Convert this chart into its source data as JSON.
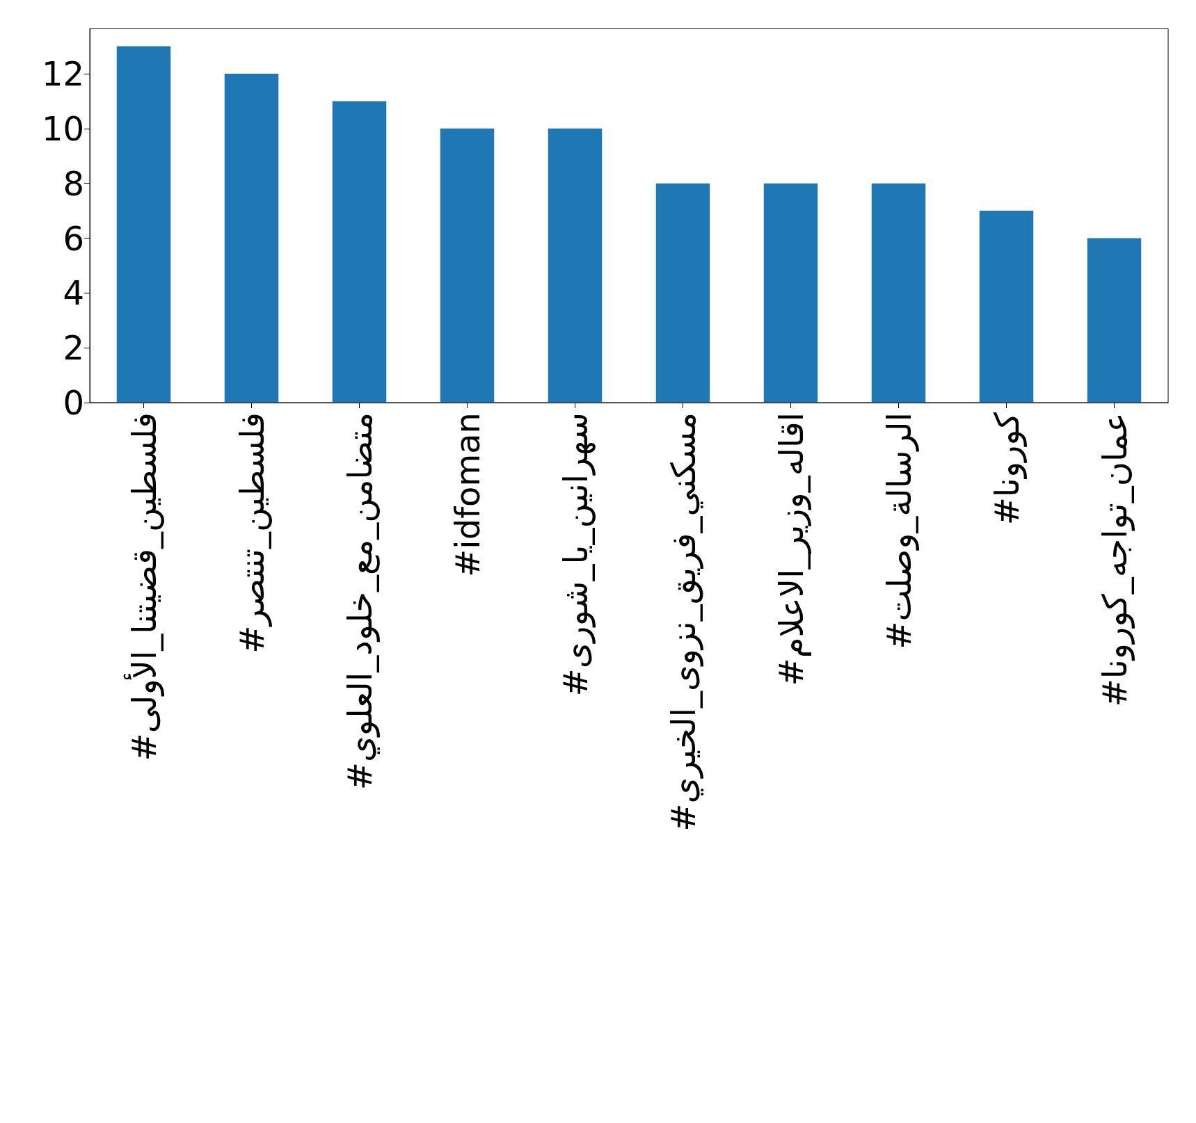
{
  "chart_data": {
    "type": "bar",
    "categories": [
      "#فلسطين_قضيتنا_الأولى",
      "#فلسطين_تنتصر",
      "#متضامن_مع_خلود_العلوي",
      "#idfoman",
      "#سهرانين_يا_شورى",
      "#مسكني_فريق_نزوى_الخيري",
      "#اقاله_وزير_الاعلام",
      "#الرسالة_وصلت",
      "#كورونا",
      "#عمان_تواجه_كورونا"
    ],
    "values": [
      13,
      12,
      11,
      10,
      10,
      8,
      8,
      8,
      7,
      6
    ],
    "color": "#1f77b4",
    "ylim": [
      0,
      13.65
    ],
    "yticks": [
      0,
      2,
      4,
      6,
      8,
      10,
      12
    ]
  }
}
